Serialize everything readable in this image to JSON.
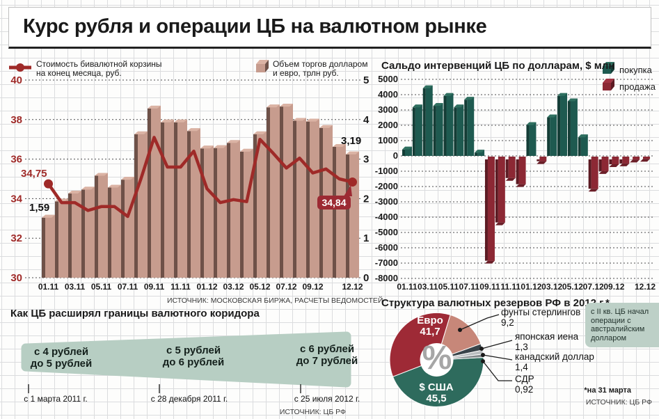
{
  "title": "Курс рубля и операции ЦБ на валютном рынке",
  "left_chart": {
    "legend_line_label_1": "Стоимость бивалютной корзины",
    "legend_line_label_2": "на конец месяца, руб.",
    "legend_bar_label_1": "Объем торгов долларом",
    "legend_bar_label_2": "и евро, трлн руб.",
    "source": "ИСТОЧНИК: МОСКОВСКАЯ БИРЖА, РАСЧЕТЫ ВЕДОМОСТЕЙ"
  },
  "intervention_chart": {
    "title": "Сальдо интервенций ЦБ по долларам, $ млн",
    "legend_buy": "покупка",
    "legend_sell": "продажа"
  },
  "corridor": {
    "title": "Как ЦБ расширял границы валютного коридора",
    "steps": [
      {
        "from": "с 4 рублей",
        "to": "до  5 рублей",
        "date": "с 1 марта 2011 г."
      },
      {
        "from": "с 5 рублей",
        "to": "до 6 рублей",
        "date": "с 28 декабря 2011 г."
      },
      {
        "from": "с 6 рублей",
        "to": "до 7 рублей",
        "date": "с 25 июля 2012 г."
      }
    ],
    "source": "ИСТОЧНИК: ЦБ РФ"
  },
  "reserves": {
    "title": "Структура валютных резервов РФ в 2012 г.*",
    "center_symbol": "%",
    "note": "с II кв. ЦБ начал операции с австралийским долларом",
    "footnote": "*на 31 марта",
    "source": "ИСТОЧНИК: ЦБ РФ"
  },
  "chart_data": [
    {
      "id": "bivalute-basket-and-trading-volume",
      "type": "bar",
      "categories": [
        "01.11",
        "02.11",
        "03.11",
        "04.11",
        "05.11",
        "06.11",
        "07.11",
        "08.11",
        "09.11",
        "10.11",
        "11.11",
        "12.11",
        "01.12",
        "02.12",
        "03.12",
        "04.12",
        "05.12",
        "06.12",
        "07.12",
        "08.12",
        "09.12",
        "10.12",
        "11.12",
        "12.12"
      ],
      "x_tick_labels": [
        "01.11",
        "03.11",
        "05.11",
        "07.11",
        "09.11",
        "11.11",
        "01.12",
        "03.12",
        "05.12",
        "07.12",
        "09.12",
        "12.12"
      ],
      "series": [
        {
          "name": "Стоимость бивалютной корзины на конец месяца, руб.",
          "type": "line",
          "axis": "left",
          "color": "#9f2a28",
          "values": [
            34.75,
            33.8,
            33.8,
            33.4,
            33.6,
            33.6,
            33.1,
            35.0,
            37.1,
            35.6,
            35.6,
            36.4,
            34.5,
            33.8,
            33.95,
            33.85,
            37.0,
            36.3,
            35.55,
            36.05,
            35.3,
            35.5,
            35.0,
            34.84
          ]
        },
        {
          "name": "Объем торгов долларом и евро, трлн руб.",
          "type": "bar",
          "axis": "right",
          "color": "#c79c8e",
          "values": [
            1.59,
            2.0,
            2.2,
            2.3,
            2.65,
            2.35,
            2.55,
            3.7,
            4.35,
            4.0,
            4.0,
            3.78,
            3.34,
            3.35,
            3.48,
            3.26,
            3.7,
            4.38,
            4.4,
            4.04,
            4.02,
            3.86,
            3.38,
            3.19
          ]
        }
      ],
      "left_axis": {
        "min": 30,
        "max": 40,
        "ticks": [
          40,
          38,
          36,
          34,
          32,
          30
        ]
      },
      "right_axis": {
        "min": 0,
        "max": 5,
        "ticks": [
          5,
          4,
          3,
          2,
          1,
          0
        ]
      },
      "grid": true,
      "annotations": {
        "first_line": "34,75",
        "first_bar": "1,59",
        "last_bar": "3,19",
        "last_line": "34,84"
      }
    },
    {
      "id": "cb-interventions-usd",
      "type": "bar",
      "title": "Сальдо интервенций ЦБ по долларам, $ млн",
      "categories": [
        "01.11",
        "02.11",
        "03.11",
        "04.11",
        "05.11",
        "06.11",
        "07.11",
        "08.11",
        "09.11",
        "10.11",
        "11.11",
        "12.11",
        "01.12",
        "02.12",
        "03.12",
        "04.12",
        "05.12",
        "06.12",
        "07.12",
        "08.12",
        "09.12",
        "10.12",
        "11.12",
        "12.12"
      ],
      "x_tick_labels": [
        "01.11",
        "03.11",
        "05.11",
        "07.11",
        "09.11",
        "11.11",
        "01.12",
        "03.12",
        "05.12",
        "07.12",
        "09.12",
        "12.12"
      ],
      "values": [
        600,
        3350,
        4600,
        3450,
        4100,
        3350,
        3850,
        400,
        -6800,
        -4300,
        -1400,
        -1800,
        2200,
        -300,
        2700,
        4100,
        3750,
        1400,
        -2100,
        -950,
        -500,
        -450,
        -200,
        -150
      ],
      "positive_color": "#1e5a50",
      "negative_color": "#8c2834",
      "legend": [
        {
          "label": "покупка",
          "color": "#1e5a50"
        },
        {
          "label": "продажа",
          "color": "#8c2834"
        }
      ],
      "y_axis": {
        "min": -8000,
        "max": 5000,
        "ticks": [
          5000,
          4000,
          3000,
          2000,
          1000,
          0,
          -1000,
          -2000,
          -3000,
          -4000,
          -5000,
          -6000,
          -7000,
          -8000
        ]
      },
      "grid": true
    },
    {
      "id": "fx-reserves-structure-2012",
      "type": "pie",
      "title": "Структура валютных резервов РФ в 2012 г.*",
      "slices": [
        {
          "label": "Евро",
          "value": 41.7,
          "display": "41,7",
          "color": "#9e2a36"
        },
        {
          "label": "$ США",
          "value": 45.5,
          "display": "45,5",
          "color": "#2e6b5d"
        },
        {
          "label": "фунты стерлингов",
          "value": 9.2,
          "display": "9,2",
          "color": "#c78779"
        },
        {
          "label": "японская иена",
          "value": 1.3,
          "display": "1,3",
          "color": "#39444a"
        },
        {
          "label": "канадский доллар",
          "value": 1.4,
          "display": "1,4",
          "color": "#b9bdbf"
        },
        {
          "label": "СДР",
          "value": 0.92,
          "display": "0,92",
          "color": "#83898c"
        }
      ]
    }
  ]
}
